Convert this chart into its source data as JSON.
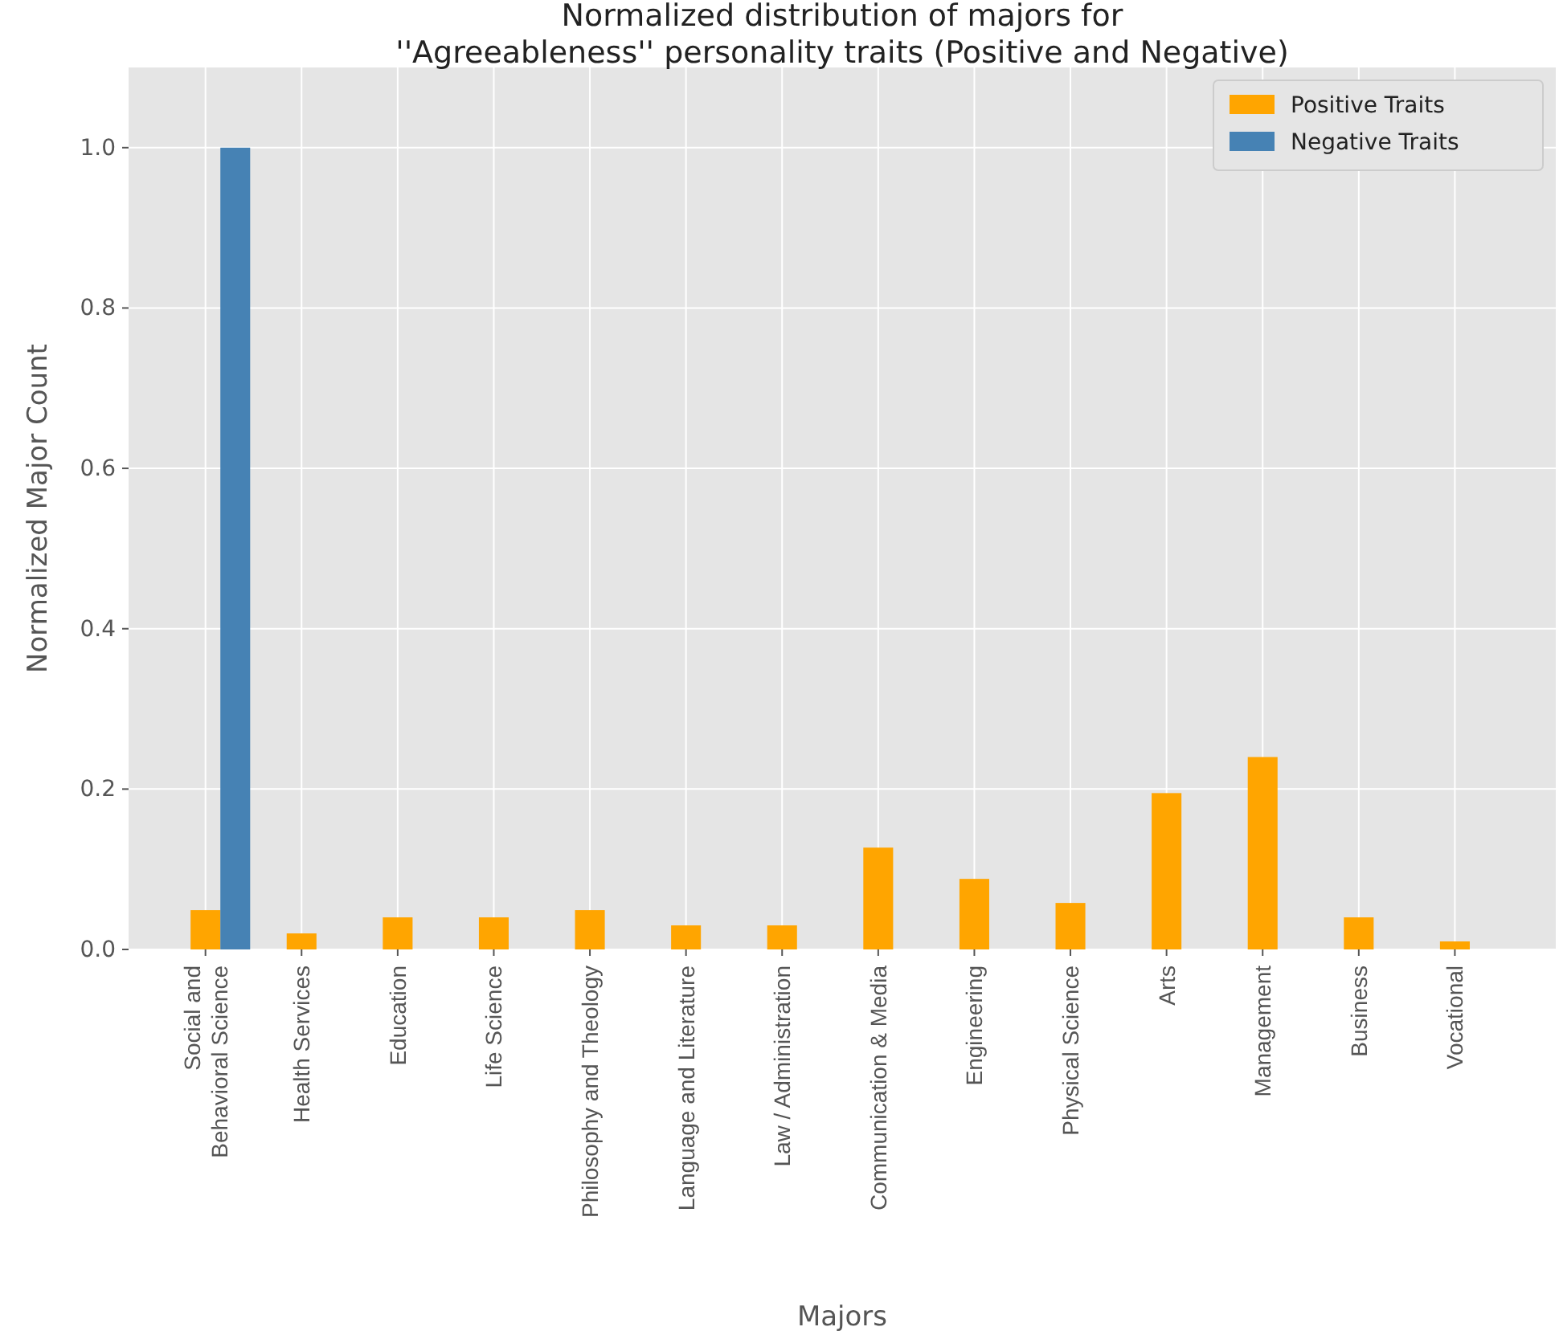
{
  "chart_data": {
    "type": "bar",
    "title": "Normalized distribution of majors for\n''Agreeableness'' personality traits (Positive and Negative)",
    "xlabel": "Majors",
    "ylabel": "Normalized Major Count",
    "categories": [
      "Social and\nBehavioral Science",
      "Health Services",
      "Education",
      "Life Science",
      "Philosophy and Theology",
      "Language and Literature",
      "Law / Administration",
      "Communication & Media",
      "Engineering",
      "Physical Science",
      "Arts",
      "Management",
      "Business",
      "Vocational"
    ],
    "series": [
      {
        "name": "Positive Traits",
        "color": "#ffa500",
        "values": [
          0.049,
          0.02,
          0.04,
          0.04,
          0.049,
          0.03,
          0.03,
          0.127,
          0.088,
          0.058,
          0.195,
          0.24,
          0.04,
          0.01
        ]
      },
      {
        "name": "Negative Traits",
        "color": "#4682b4",
        "values": [
          1.0,
          0,
          0,
          0,
          0,
          0,
          0,
          0,
          0,
          0,
          0,
          0,
          0,
          0
        ]
      }
    ],
    "ylim": [
      0,
      1.1
    ],
    "yticks": [
      {
        "value": 0,
        "label": "0.0"
      },
      {
        "value": 0.2,
        "label": "0.2"
      },
      {
        "value": 0.4,
        "label": "0.4"
      },
      {
        "value": 0.6,
        "label": "0.6"
      },
      {
        "value": 0.8,
        "label": "0.8"
      },
      {
        "value": 1.0,
        "label": "1.0"
      }
    ],
    "grid": true,
    "legend": "top right"
  }
}
